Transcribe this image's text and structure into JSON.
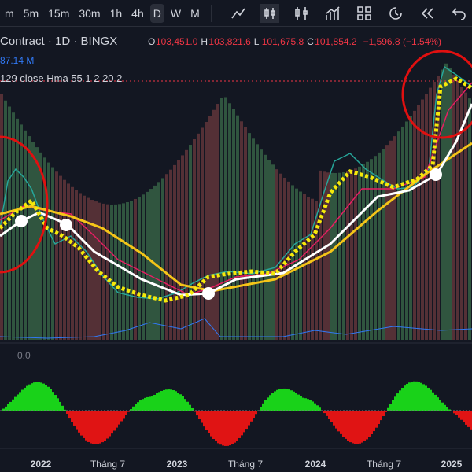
{
  "toolbar": {
    "intervals": [
      "m",
      "5m",
      "15m",
      "30m",
      "1h",
      "4h",
      "D",
      "W",
      "M"
    ],
    "active": 6
  },
  "legend": {
    "symbol": "Contract · 1D · BINGX",
    "ohlc": [
      {
        "key": "O",
        "value": "103,451.0"
      },
      {
        "key": "H",
        "value": "103,821.6"
      },
      {
        "key": "L",
        "value": "101,675.8"
      },
      {
        "key": "C",
        "value": "101,854.2"
      }
    ],
    "change": "−1,596.8 (−1.54%)",
    "volume": "87.14 M",
    "indicator": "129 close Hma 55 1 2 20 2"
  },
  "lower_pane": {
    "label": "0.0"
  },
  "x_axis": {
    "labels": [
      "2022",
      "Tháng 7",
      "2023",
      "Tháng 7",
      "2024",
      "Tháng 7",
      "2025"
    ]
  }
}
